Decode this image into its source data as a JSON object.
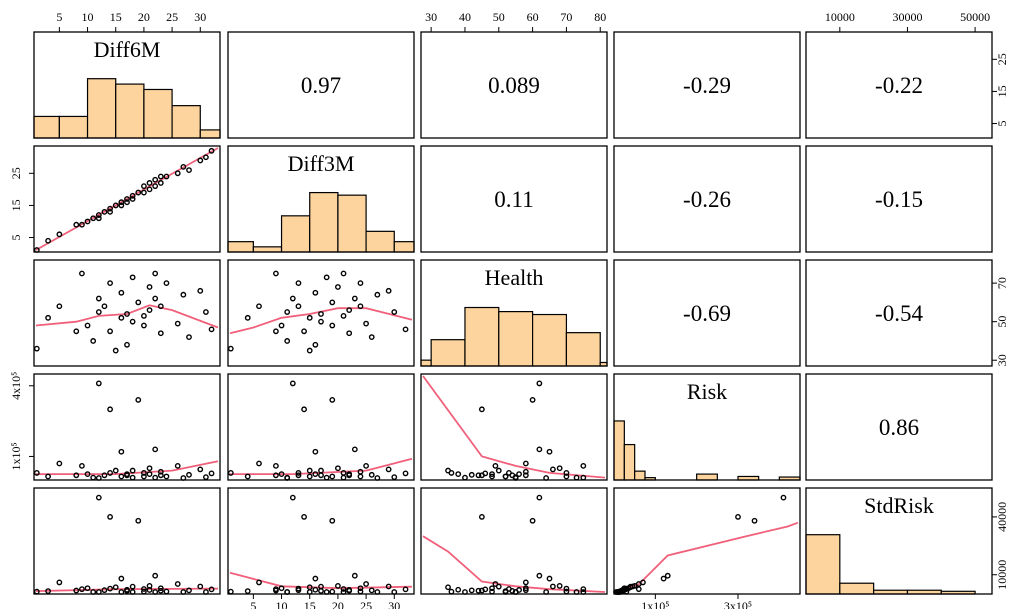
{
  "chart_data": {
    "type": "scatter-matrix",
    "variables": [
      "Diff6M",
      "Diff3M",
      "Health",
      "Risk",
      "StdRisk"
    ],
    "correlations": [
      {
        "row": 0,
        "col": 1,
        "text": "0.97"
      },
      {
        "row": 0,
        "col": 2,
        "text": "0.089"
      },
      {
        "row": 0,
        "col": 3,
        "text": "-0.29"
      },
      {
        "row": 0,
        "col": 4,
        "text": "-0.22"
      },
      {
        "row": 1,
        "col": 2,
        "text": "0.11"
      },
      {
        "row": 1,
        "col": 3,
        "text": "-0.26"
      },
      {
        "row": 1,
        "col": 4,
        "text": "-0.15"
      },
      {
        "row": 2,
        "col": 3,
        "text": "-0.69"
      },
      {
        "row": 2,
        "col": 4,
        "text": "-0.54"
      },
      {
        "row": 3,
        "col": 4,
        "text": "0.86"
      }
    ],
    "ranges": [
      [
        0.5,
        33.5
      ],
      [
        0.5,
        33.5
      ],
      [
        27,
        82
      ],
      [
        0,
        450000
      ],
      [
        0,
        55000
      ]
    ],
    "axis_ticks": {
      "top": [
        {
          "col": 0,
          "values": [
            5,
            10,
            15,
            20,
            25,
            30
          ],
          "labels": [
            "5",
            "10",
            "15",
            "20",
            "25",
            "30"
          ]
        },
        {
          "col": 2,
          "values": [
            30,
            40,
            50,
            60,
            70,
            80
          ],
          "labels": [
            "30",
            "40",
            "50",
            "60",
            "70",
            "80"
          ]
        },
        {
          "col": 4,
          "values": [
            10000,
            30000,
            50000
          ],
          "labels": [
            "10000",
            "30000",
            "50000"
          ]
        }
      ],
      "bottom": [
        {
          "col": 1,
          "values": [
            5,
            10,
            15,
            20,
            25,
            30
          ],
          "labels": [
            "5",
            "10",
            "15",
            "20",
            "25",
            "30"
          ]
        },
        {
          "col": 3,
          "values": [
            100000,
            300000
          ],
          "labels": [
            "1x10⁵",
            "3x10⁵"
          ]
        }
      ],
      "left": [
        {
          "row": 1,
          "values": [
            5,
            15,
            25
          ],
          "labels": [
            "5",
            "15",
            "25"
          ]
        },
        {
          "row": 3,
          "values": [
            100000,
            400000
          ],
          "labels": [
            "1x10⁵",
            "4x10⁵"
          ]
        }
      ],
      "right": [
        {
          "row": 0,
          "values": [
            5,
            15,
            25
          ],
          "labels": [
            "5",
            "15",
            "25"
          ]
        },
        {
          "row": 2,
          "values": [
            30,
            50,
            70
          ],
          "labels": [
            "30",
            "50",
            "70"
          ]
        },
        {
          "row": 4,
          "values": [
            10000,
            40000
          ],
          "labels": [
            "10000",
            "40000"
          ]
        }
      ]
    },
    "histograms": [
      {
        "var": 0,
        "bins": [
          [
            0,
            5,
            4
          ],
          [
            5,
            10,
            4
          ],
          [
            10,
            15,
            11
          ],
          [
            15,
            20,
            10
          ],
          [
            20,
            25,
            9
          ],
          [
            25,
            30,
            6
          ],
          [
            30,
            35,
            1.5
          ]
        ],
        "max": 11.5
      },
      {
        "var": 1,
        "bins": [
          [
            0,
            5,
            2
          ],
          [
            5,
            10,
            1
          ],
          [
            10,
            15,
            7
          ],
          [
            15,
            20,
            11.5
          ],
          [
            20,
            25,
            11
          ],
          [
            25,
            30,
            4
          ],
          [
            30,
            35,
            2
          ]
        ],
        "max": 12
      },
      {
        "var": 2,
        "bins": [
          [
            25,
            30,
            1
          ],
          [
            30,
            40,
            4.5
          ],
          [
            40,
            50,
            10
          ],
          [
            50,
            60,
            9.3
          ],
          [
            60,
            70,
            8.8
          ],
          [
            70,
            80,
            5.7
          ],
          [
            80,
            85,
            0.6
          ]
        ],
        "max": 10.6
      },
      {
        "var": 3,
        "bins": [
          [
            0,
            25000,
            10
          ],
          [
            25000,
            50000,
            6
          ],
          [
            50000,
            75000,
            1.5
          ],
          [
            75000,
            100000,
            0.4
          ],
          [
            100000,
            200000,
            0
          ],
          [
            200000,
            250000,
            1
          ],
          [
            250000,
            300000,
            0
          ],
          [
            300000,
            350000,
            0.6
          ],
          [
            350000,
            400000,
            0
          ],
          [
            400000,
            450000,
            0.5
          ]
        ],
        "max": 10.5
      },
      {
        "var": 4,
        "bins": [
          [
            0,
            10000,
            11
          ],
          [
            10000,
            20000,
            2
          ],
          [
            20000,
            30000,
            0.7
          ],
          [
            30000,
            40000,
            0.7
          ],
          [
            40000,
            50000,
            0.5
          ],
          [
            50000,
            60000,
            0
          ]
        ],
        "max": 11.5
      }
    ],
    "observations": {
      "Diff6M": [
        1,
        3,
        8,
        9,
        10,
        11,
        12,
        12,
        13,
        14,
        14,
        15,
        16,
        16,
        17,
        17,
        18,
        18,
        19,
        20,
        20,
        21,
        21,
        22,
        22,
        23,
        23,
        24,
        26,
        27,
        28,
        30,
        31,
        32,
        5
      ],
      "Diff3M": [
        1,
        4,
        9,
        9,
        10,
        11,
        11,
        12,
        13,
        13,
        14,
        15,
        15,
        16,
        16,
        17,
        18,
        17,
        19,
        19,
        21,
        20,
        22,
        21,
        23,
        22,
        24,
        24,
        25,
        27,
        26,
        29,
        30,
        32,
        6
      ],
      "Health": [
        36,
        52,
        45,
        75,
        48,
        40,
        55,
        62,
        58,
        70,
        45,
        35,
        52,
        65,
        38,
        54,
        73,
        50,
        60,
        48,
        53,
        68,
        56,
        75,
        62,
        44,
        58,
        70,
        49,
        64,
        42,
        66,
        55,
        46,
        58
      ],
      "Risk": [
        30000,
        15000,
        20000,
        60000,
        25000,
        10000,
        5000,
        410000,
        20000,
        30000,
        300000,
        40000,
        15000,
        120000,
        25000,
        20000,
        10000,
        40000,
        340000,
        15000,
        30000,
        50000,
        25000,
        10000,
        130000,
        20000,
        35000,
        15000,
        60000,
        8000,
        22000,
        45000,
        12000,
        28000,
        70000
      ],
      "StdRisk": [
        1200,
        1500,
        1800,
        2500,
        3000,
        800,
        500,
        50000,
        2000,
        2800,
        40000,
        3500,
        1000,
        8000,
        2200,
        1600,
        900,
        3800,
        38000,
        1200,
        2600,
        4200,
        2100,
        700,
        9500,
        1700,
        3000,
        1300,
        5200,
        600,
        1900,
        3900,
        1000,
        2400,
        6000
      ]
    },
    "lowess": {
      "0-1": [
        [
          0.5,
          0.5
        ],
        [
          33.5,
          33.5
        ]
      ],
      "1-0": [
        [
          0.5,
          0.5
        ],
        [
          33.5,
          33.5
        ]
      ],
      "2-0": [
        [
          0.5,
          48
        ],
        [
          8,
          50
        ],
        [
          12,
          53
        ],
        [
          17,
          54
        ],
        [
          21,
          58.5
        ],
        [
          25,
          56
        ],
        [
          33.5,
          47
        ]
      ],
      "2-1": [
        [
          0.5,
          44
        ],
        [
          5,
          47
        ],
        [
          10,
          52
        ],
        [
          15,
          54
        ],
        [
          20,
          57
        ],
        [
          25,
          57
        ],
        [
          33.5,
          51
        ]
      ],
      "3-0": [
        [
          0.5,
          25000
        ],
        [
          15,
          25000
        ],
        [
          25,
          40000
        ],
        [
          33.5,
          80000
        ]
      ],
      "3-1": [
        [
          0.5,
          25000
        ],
        [
          12,
          25000
        ],
        [
          25,
          40000
        ],
        [
          33.5,
          90000
        ]
      ],
      "3-2": [
        [
          27,
          450000
        ],
        [
          45,
          100000
        ],
        [
          55,
          60000
        ],
        [
          65,
          30000
        ],
        [
          82,
          10000
        ]
      ],
      "4-0": [
        [
          0.5,
          1500
        ],
        [
          15,
          2500
        ],
        [
          33.5,
          2800
        ]
      ],
      "4-1": [
        [
          0.5,
          11000
        ],
        [
          10,
          4000
        ],
        [
          20,
          3000
        ],
        [
          33.5,
          3800
        ]
      ],
      "4-2": [
        [
          27,
          30000
        ],
        [
          35,
          22000
        ],
        [
          45,
          6500
        ],
        [
          55,
          4000
        ],
        [
          65,
          2500
        ],
        [
          82,
          800
        ]
      ],
      "4-3": [
        [
          0,
          500
        ],
        [
          60000,
          5000
        ],
        [
          130000,
          20000
        ],
        [
          320000,
          30000
        ],
        [
          420000,
          35000
        ],
        [
          450000,
          37000
        ]
      ]
    }
  }
}
